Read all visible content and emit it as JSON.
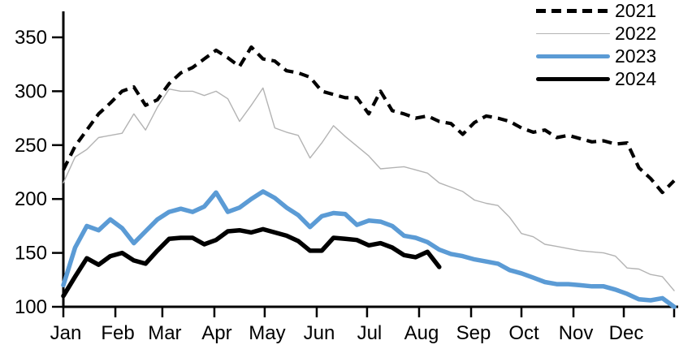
{
  "chart_data": {
    "type": "line",
    "title": "",
    "xlabel": "",
    "ylabel": "",
    "x_unit": "day_of_year",
    "ylim": [
      100,
      350
    ],
    "y_ticks": [
      100,
      150,
      200,
      250,
      300,
      350
    ],
    "x_ticks": [
      {
        "day": 1,
        "label": "Jan"
      },
      {
        "day": 32,
        "label": "Feb"
      },
      {
        "day": 60,
        "label": "Mar"
      },
      {
        "day": 91,
        "label": "Apr"
      },
      {
        "day": 121,
        "label": "May"
      },
      {
        "day": 152,
        "label": "Jun"
      },
      {
        "day": 182,
        "label": "Jul"
      },
      {
        "day": 213,
        "label": "Aug"
      },
      {
        "day": 244,
        "label": "Sep"
      },
      {
        "day": 274,
        "label": "Oct"
      },
      {
        "day": 305,
        "label": "Nov"
      },
      {
        "day": 335,
        "label": "Dec"
      },
      {
        "day": 365,
        "label": ""
      }
    ],
    "grid": false,
    "legend_position": "top-right",
    "axis_color": "#000000",
    "series": [
      {
        "name": "2021",
        "color": "#000000",
        "style": "dashed",
        "width": 4.2,
        "day_start": 1,
        "day_step": 7,
        "values": [
          227,
          249,
          264,
          279,
          289,
          300,
          304,
          287,
          292,
          307,
          317,
          322,
          330,
          338,
          331,
          323,
          341,
          330,
          328,
          319,
          317,
          313,
          300,
          297,
          294,
          294,
          279,
          300,
          282,
          279,
          275,
          277,
          272,
          270,
          260,
          271,
          277,
          275,
          272,
          266,
          262,
          264,
          257,
          259,
          256,
          253,
          254,
          251,
          252,
          229,
          219,
          206,
          217
        ]
      },
      {
        "name": "2022",
        "color": "#b3b3b3",
        "style": "solid",
        "width": 1.4,
        "day_start": 1,
        "day_step": 7,
        "values": [
          215,
          239,
          246,
          257,
          259,
          261,
          279,
          264,
          285,
          302,
          300,
          300,
          296,
          300,
          293,
          272,
          287,
          303,
          266,
          262,
          259,
          238,
          252,
          268,
          258,
          249,
          240,
          228,
          229,
          230,
          227,
          224,
          215,
          211,
          207,
          199,
          196,
          194,
          183,
          168,
          165,
          158,
          156,
          154,
          152,
          151,
          150,
          147,
          136,
          135,
          130,
          128,
          115
        ]
      },
      {
        "name": "2023",
        "color": "#5b9bd5",
        "style": "solid",
        "width": 5.5,
        "day_start": 1,
        "day_step": 7,
        "values": [
          120,
          155,
          175,
          171,
          181,
          173,
          159,
          170,
          181,
          188,
          191,
          188,
          193,
          206,
          188,
          192,
          200,
          207,
          201,
          192,
          185,
          174,
          184,
          187,
          186,
          176,
          180,
          179,
          175,
          166,
          164,
          160,
          153,
          149,
          147,
          144,
          142,
          140,
          134,
          131,
          127,
          123,
          121,
          121,
          120,
          119,
          119,
          116,
          112,
          107,
          106,
          108,
          100
        ]
      },
      {
        "name": "2024",
        "color": "#000000",
        "style": "solid",
        "width": 5.5,
        "day_start": 1,
        "day_step": 7,
        "values": [
          110,
          128,
          145,
          139,
          147,
          150,
          143,
          140,
          152,
          163,
          164,
          164,
          158,
          162,
          170,
          171,
          169,
          172,
          169,
          166,
          161,
          152,
          152,
          164,
          163,
          162,
          157,
          159,
          155,
          148,
          146,
          151,
          137
        ]
      }
    ]
  },
  "legend": {
    "items": [
      {
        "label": "2021"
      },
      {
        "label": "2022"
      },
      {
        "label": "2023"
      },
      {
        "label": "2024"
      }
    ]
  }
}
